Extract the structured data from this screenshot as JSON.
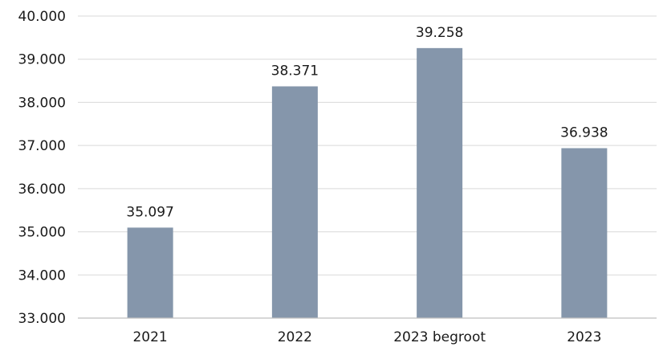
{
  "chart_data": {
    "type": "bar",
    "title": "",
    "xlabel": "",
    "ylabel": "",
    "categories": [
      "2021",
      "2022",
      "2023 begroot",
      "2023"
    ],
    "values": [
      35097,
      38371,
      39258,
      36938
    ],
    "value_labels": [
      "35.097",
      "38.371",
      "39.258",
      "36.938"
    ],
    "ylim": [
      33000,
      40000
    ],
    "yticks": [
      33000,
      34000,
      35000,
      36000,
      37000,
      38000,
      39000,
      40000
    ],
    "ytick_labels": [
      "33.000",
      "34.000",
      "35.000",
      "36.000",
      "37.000",
      "38.000",
      "39.000",
      "40.000"
    ],
    "grid": true,
    "legend": "none",
    "colors": {
      "bar": "#8596ab",
      "grid": "#d9d9d9",
      "axis": "#bfbfbf",
      "text": "#1a1a1a"
    }
  }
}
